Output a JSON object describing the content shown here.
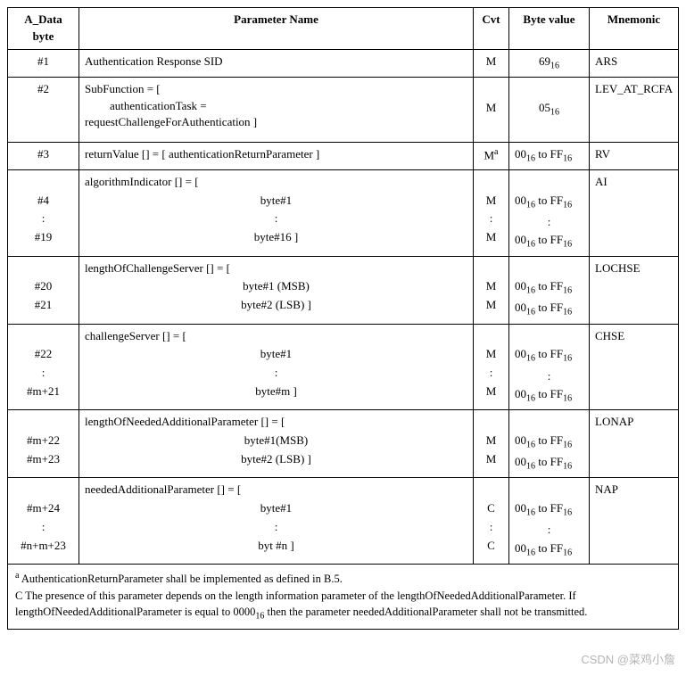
{
  "headers": {
    "byte": "A_Data byte",
    "name": "Parameter Name",
    "cvt": "Cvt",
    "val": "Byte value",
    "mnem": "Mnemonic"
  },
  "rows": {
    "r1": {
      "byte": "#1",
      "name": "Authentication Response SID",
      "cvt": "M",
      "val_pre": "69",
      "val_sub": "16",
      "mnem": "ARS"
    },
    "r2": {
      "byte": "#2",
      "name_l1": "SubFunction = [",
      "name_l2": "authenticationTask =",
      "name_l3": "requestChallengeForAuthentication ]",
      "cvt": "M",
      "val_pre": "05",
      "val_sub": "16",
      "mnem": "LEV_AT_RCFA"
    },
    "r3": {
      "byte": "#3",
      "name": "returnValue [] = [ authenticationReturnParameter ]",
      "cvt_pre": "M",
      "cvt_sup": "a",
      "val_lo_pre": "00",
      "val_lo_sub": "16",
      "val_to": " to ",
      "val_hi_pre": "FF",
      "val_hi_sub": "16",
      "mnem": "RV"
    },
    "r4": {
      "byte_l1": "",
      "byte_l2": "#4",
      "byte_l3": ":",
      "byte_l4": "#19",
      "name_l1": "algorithmIndicator [] = [",
      "name_l2": "byte#1",
      "name_l3": ":",
      "name_l4": "byte#16 ]",
      "cvt_l1": "",
      "cvt_l2": "M",
      "cvt_l3": ":",
      "cvt_l4": "M",
      "val_l1": "",
      "val_l2_lo": "00",
      "val_l2_sub": "16",
      "val_l2_to": " to ",
      "val_l2_hi": "FF",
      "val_l2_hsub": "16",
      "val_l3": ":",
      "val_l4_lo": "00",
      "val_l4_sub": "16",
      "val_l4_to": " to ",
      "val_l4_hi": "FF",
      "val_l4_hsub": "16",
      "mnem": "AI"
    },
    "r5": {
      "byte_l1": "",
      "byte_l2": "#20",
      "byte_l3": "#21",
      "name_l1": "lengthOfChallengeServer [] = [",
      "name_l2": "byte#1 (MSB)",
      "name_l3": "byte#2 (LSB) ]",
      "cvt_l1": "",
      "cvt_l2": "M",
      "cvt_l3": "M",
      "val_l1": "",
      "val_l2_lo": "00",
      "val_l2_sub": "16",
      "val_l2_to": " to ",
      "val_l2_hi": "FF",
      "val_l2_hsub": "16",
      "val_l3_lo": "00",
      "val_l3_sub": "16",
      "val_l3_to": " to ",
      "val_l3_hi": "FF",
      "val_l3_hsub": "16",
      "mnem": "LOCHSE"
    },
    "r6": {
      "byte_l1": "",
      "byte_l2": "#22",
      "byte_l3": ":",
      "byte_l4": "#m+21",
      "name_l1": "challengeServer [] = [",
      "name_l2": "byte#1",
      "name_l3": ":",
      "name_l4": "byte#m ]",
      "cvt_l1": "",
      "cvt_l2": "M",
      "cvt_l3": ":",
      "cvt_l4": "M",
      "val_l1": "",
      "val_l2_lo": "00",
      "val_l2_sub": "16",
      "val_l2_to": " to ",
      "val_l2_hi": "FF",
      "val_l2_hsub": "16",
      "val_l3": ":",
      "val_l4_lo": "00",
      "val_l4_sub": "16",
      "val_l4_to": " to ",
      "val_l4_hi": "FF",
      "val_l4_hsub": "16",
      "mnem": "CHSE"
    },
    "r7": {
      "byte_l1": "",
      "byte_l2": "#m+22",
      "byte_l3": "#m+23",
      "name_l1": "lengthOfNeededAdditionalParameter [] = [",
      "name_l2": "byte#1(MSB)",
      "name_l3": "byte#2 (LSB) ]",
      "cvt_l1": "",
      "cvt_l2": "M",
      "cvt_l3": "M",
      "val_l1": "",
      "val_l2_lo": "00",
      "val_l2_sub": "16",
      "val_l2_to": " to ",
      "val_l2_hi": "FF",
      "val_l2_hsub": "16",
      "val_l3_lo": "00",
      "val_l3_sub": "16",
      "val_l3_to": " to ",
      "val_l3_hi": "FF",
      "val_l3_hsub": "16",
      "mnem": "LONAP"
    },
    "r8": {
      "byte_l1": "",
      "byte_l2": "#m+24",
      "byte_l3": ":",
      "byte_l4": "#n+m+23",
      "name_l1": "neededAdditionalParameter [] = [",
      "name_l2": "byte#1",
      "name_l3": ":",
      "name_l4": "byt #n ]",
      "cvt_l1": "",
      "cvt_l2": "C",
      "cvt_l3": ":",
      "cvt_l4": "C",
      "val_l1": "",
      "val_l2_lo": "00",
      "val_l2_sub": "16",
      "val_l2_to": " to ",
      "val_l2_hi": "FF",
      "val_l2_hsub": "16",
      "val_l3": ":",
      "val_l4_lo": "00",
      "val_l4_sub": "16",
      "val_l4_to": " to ",
      "val_l4_hi": "FF",
      "val_l4_hsub": "16",
      "mnem": "NAP"
    }
  },
  "footnotes": {
    "a_sup": "a",
    "a_text": " AuthenticationReturnParameter shall be implemented as defined in B.5.",
    "c_label": "C",
    "c_text_1": " The presence of this parameter depends on the length information parameter of the lengthOfNeededAdditionalParameter. If lengthOfNeededAdditionalParameter is equal to 0000",
    "c_sub": "16",
    "c_text_2": " then the parameter neededAdditionalParameter shall not be transmitted."
  },
  "watermark": "CSDN @菜鸡小詹"
}
